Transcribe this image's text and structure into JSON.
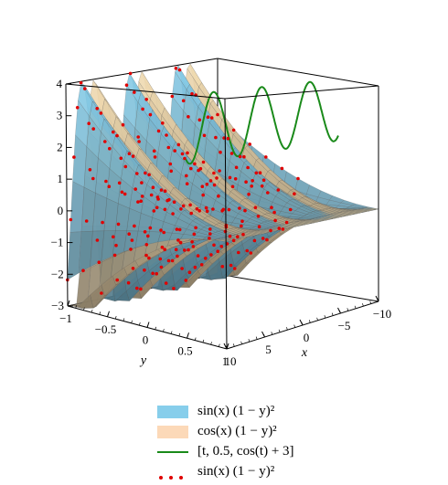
{
  "chart_data": {
    "type": "surface3d",
    "title": "",
    "axes": {
      "x": {
        "label": "x",
        "range": [
          -10,
          10
        ],
        "ticks": [
          "10",
          "5",
          "0",
          "-5",
          "-10"
        ]
      },
      "y": {
        "label": "y",
        "range": [
          -1,
          1
        ],
        "ticks": [
          "-1",
          "-0.5",
          "0",
          "0.5",
          "1"
        ]
      },
      "z": {
        "label": "",
        "range": [
          -3,
          4
        ],
        "ticks": [
          "4",
          "3",
          "2",
          "1",
          "0",
          "-1",
          "-2",
          "-3"
        ]
      }
    },
    "grid": false,
    "box": true,
    "legend_position": "bottom",
    "series": [
      {
        "name": "sin(x) (1 − y)²",
        "kind": "surface",
        "color": "#87ceeb",
        "expr": "sin(x)*(1-y)^2"
      },
      {
        "name": "cos(x) (1 − y)²",
        "kind": "surface",
        "color": "#f5deb3",
        "expr": "cos(x)*(1-y)^2"
      },
      {
        "name": "[t, 0.5, cos(t) + 3]",
        "kind": "spacecurve",
        "color": "#1a8a1a",
        "expr": "[t, 0.5, cos(t)+3]"
      },
      {
        "name": "sin(x) (1 − y)²",
        "kind": "points",
        "color": "#e00000",
        "expr": "sin(x)*(1-y)^2"
      }
    ]
  },
  "legend": {
    "items": [
      {
        "label": "sin(x) (1 − y)²",
        "style": "swatch",
        "color": "#87ceeb"
      },
      {
        "label": "cos(x) (1 − y)²",
        "style": "swatch",
        "color": "#fcd9b8"
      },
      {
        "label": "[t, 0.5, cos(t) + 3]",
        "style": "line",
        "color": "#1a8a1a"
      },
      {
        "label": "sin(x) (1 − y)²",
        "style": "dots",
        "color": "#e00000"
      }
    ]
  }
}
